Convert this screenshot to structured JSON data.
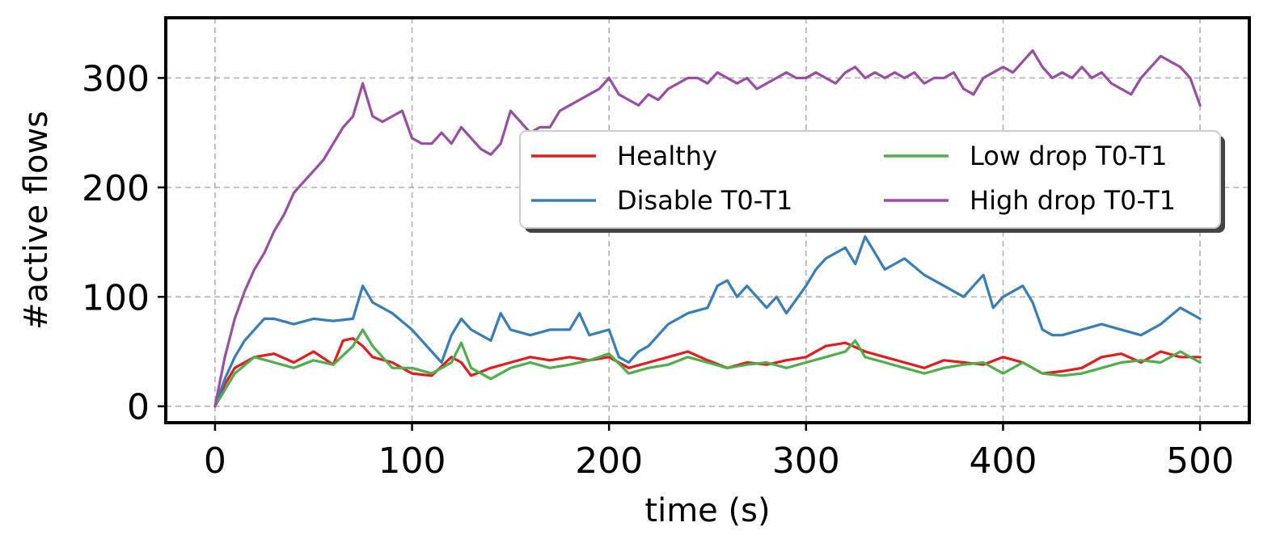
{
  "chart_data": {
    "type": "line",
    "title": "",
    "xlabel": "time (s)",
    "ylabel": "#active flows",
    "xlim": [
      -25,
      525
    ],
    "ylim": [
      -15,
      355
    ],
    "xticks": [
      0,
      100,
      200,
      300,
      400,
      500
    ],
    "yticks": [
      0,
      100,
      200,
      300
    ],
    "grid": true,
    "legend": {
      "position": "center-right",
      "columns": 2
    },
    "series": [
      {
        "name": "Healthy",
        "color": "#e41a1c",
        "x": [
          0,
          5,
          10,
          20,
          30,
          40,
          50,
          60,
          65,
          70,
          75,
          80,
          90,
          100,
          110,
          120,
          125,
          130,
          140,
          150,
          160,
          170,
          180,
          190,
          200,
          210,
          220,
          230,
          240,
          250,
          260,
          270,
          280,
          290,
          300,
          310,
          320,
          330,
          340,
          350,
          360,
          370,
          380,
          390,
          400,
          410,
          420,
          430,
          440,
          450,
          460,
          470,
          480,
          490,
          500
        ],
        "y": [
          0,
          20,
          35,
          45,
          48,
          40,
          50,
          38,
          60,
          62,
          55,
          45,
          40,
          30,
          28,
          45,
          40,
          28,
          35,
          40,
          45,
          42,
          45,
          42,
          45,
          35,
          40,
          45,
          50,
          42,
          35,
          40,
          38,
          42,
          45,
          55,
          58,
          50,
          45,
          40,
          35,
          42,
          40,
          38,
          45,
          40,
          30,
          32,
          35,
          45,
          48,
          40,
          50,
          45,
          45
        ]
      },
      {
        "name": "Disable T0-T1",
        "color": "#377eb8",
        "x": [
          0,
          5,
          10,
          15,
          20,
          25,
          30,
          40,
          50,
          60,
          70,
          75,
          80,
          90,
          100,
          110,
          115,
          120,
          125,
          130,
          140,
          145,
          150,
          160,
          170,
          180,
          185,
          190,
          200,
          205,
          210,
          215,
          220,
          230,
          240,
          250,
          255,
          260,
          265,
          270,
          280,
          285,
          290,
          300,
          305,
          310,
          320,
          325,
          330,
          335,
          340,
          350,
          360,
          370,
          380,
          390,
          395,
          400,
          410,
          415,
          420,
          425,
          430,
          440,
          450,
          460,
          470,
          480,
          490,
          500
        ],
        "y": [
          0,
          25,
          45,
          60,
          70,
          80,
          80,
          75,
          80,
          78,
          80,
          110,
          95,
          85,
          70,
          50,
          40,
          65,
          80,
          70,
          60,
          85,
          70,
          65,
          70,
          70,
          85,
          65,
          70,
          45,
          40,
          50,
          55,
          75,
          85,
          90,
          110,
          115,
          100,
          110,
          90,
          100,
          85,
          110,
          125,
          135,
          145,
          130,
          155,
          140,
          125,
          135,
          120,
          110,
          100,
          120,
          90,
          100,
          110,
          95,
          70,
          65,
          65,
          70,
          75,
          70,
          65,
          75,
          90,
          80
        ]
      },
      {
        "name": "Low drop T0-T1",
        "color": "#4daf4a",
        "x": [
          0,
          5,
          10,
          20,
          30,
          40,
          50,
          60,
          70,
          75,
          80,
          90,
          100,
          110,
          115,
          120,
          125,
          130,
          140,
          150,
          160,
          170,
          180,
          190,
          200,
          210,
          220,
          230,
          240,
          250,
          260,
          270,
          280,
          290,
          300,
          310,
          320,
          325,
          330,
          340,
          350,
          360,
          370,
          380,
          390,
          400,
          410,
          420,
          430,
          440,
          450,
          460,
          470,
          480,
          490,
          500
        ],
        "y": [
          0,
          15,
          30,
          45,
          40,
          35,
          42,
          38,
          55,
          70,
          55,
          35,
          35,
          30,
          35,
          40,
          58,
          35,
          25,
          35,
          40,
          35,
          38,
          42,
          48,
          30,
          35,
          38,
          45,
          40,
          35,
          38,
          40,
          35,
          40,
          45,
          50,
          60,
          45,
          40,
          35,
          30,
          35,
          38,
          40,
          30,
          40,
          30,
          28,
          30,
          35,
          40,
          42,
          40,
          50,
          40
        ]
      },
      {
        "name": "High drop T0-T1",
        "color": "#984ea3",
        "x": [
          0,
          5,
          10,
          15,
          20,
          25,
          30,
          35,
          40,
          45,
          50,
          55,
          60,
          65,
          70,
          75,
          80,
          85,
          90,
          95,
          100,
          105,
          110,
          115,
          120,
          125,
          130,
          135,
          140,
          145,
          150,
          155,
          160,
          165,
          170,
          175,
          180,
          185,
          190,
          195,
          200,
          205,
          210,
          215,
          220,
          225,
          230,
          235,
          240,
          245,
          250,
          255,
          260,
          265,
          270,
          275,
          280,
          285,
          290,
          295,
          300,
          305,
          310,
          315,
          320,
          325,
          330,
          335,
          340,
          345,
          350,
          355,
          360,
          365,
          370,
          375,
          380,
          385,
          390,
          395,
          400,
          405,
          410,
          415,
          420,
          425,
          430,
          435,
          440,
          445,
          450,
          455,
          460,
          465,
          470,
          475,
          480,
          485,
          490,
          495,
          500
        ],
        "y": [
          0,
          45,
          80,
          105,
          125,
          140,
          160,
          175,
          195,
          205,
          215,
          225,
          240,
          255,
          265,
          295,
          265,
          260,
          265,
          270,
          245,
          240,
          240,
          250,
          240,
          255,
          245,
          235,
          230,
          240,
          270,
          260,
          250,
          255,
          255,
          270,
          275,
          280,
          285,
          290,
          300,
          285,
          280,
          275,
          285,
          280,
          290,
          295,
          300,
          300,
          295,
          305,
          300,
          295,
          300,
          290,
          295,
          300,
          305,
          300,
          300,
          305,
          300,
          295,
          305,
          310,
          300,
          305,
          300,
          305,
          300,
          305,
          295,
          300,
          300,
          305,
          290,
          285,
          300,
          305,
          310,
          305,
          315,
          325,
          310,
          300,
          305,
          300,
          310,
          300,
          305,
          295,
          290,
          285,
          300,
          310,
          320,
          315,
          310,
          300,
          275
        ]
      }
    ]
  }
}
